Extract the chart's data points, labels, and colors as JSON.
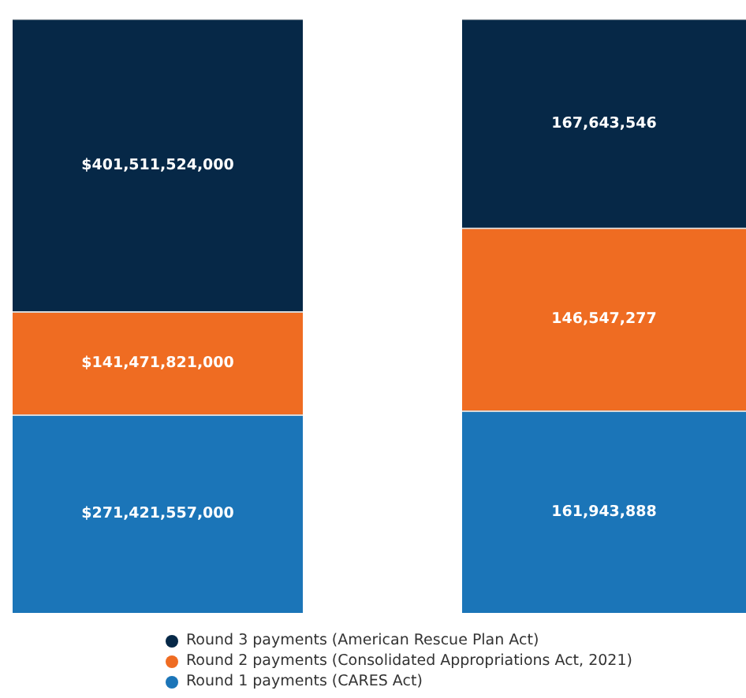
{
  "chart_data": [
    {
      "type": "bar",
      "stacked": true,
      "categories": [
        null
      ],
      "legend": "bottom",
      "series": [
        {
          "name": "Round 1 payments (CARES Act)",
          "color": "#1b75b8",
          "values": [
            271421557000
          ],
          "value_labels": [
            "$271,421,557,000"
          ]
        },
        {
          "name": "Round 2 payments (Consolidated Appropriations Act, 2021)",
          "color": "#ef6c22",
          "values": [
            141471821000
          ],
          "value_labels": [
            "$141,471,821,000"
          ]
        },
        {
          "name": "Round 3 payments (American Rescue Plan Act)",
          "color": "#062847",
          "values": [
            401511524000
          ],
          "value_labels": [
            "$401,511,524,000"
          ]
        }
      ]
    },
    {
      "type": "bar",
      "stacked": true,
      "categories": [
        null
      ],
      "series": [
        {
          "color": "#1b75b8",
          "values": [
            161943888
          ],
          "value_labels": [
            "161,943,888"
          ]
        },
        {
          "color": "#ef6c22",
          "values": [
            146547277
          ],
          "value_labels": [
            "146,547,277"
          ]
        },
        {
          "color": "#062847",
          "values": [
            167643546
          ],
          "value_labels": [
            "167,643,546"
          ]
        }
      ]
    }
  ]
}
